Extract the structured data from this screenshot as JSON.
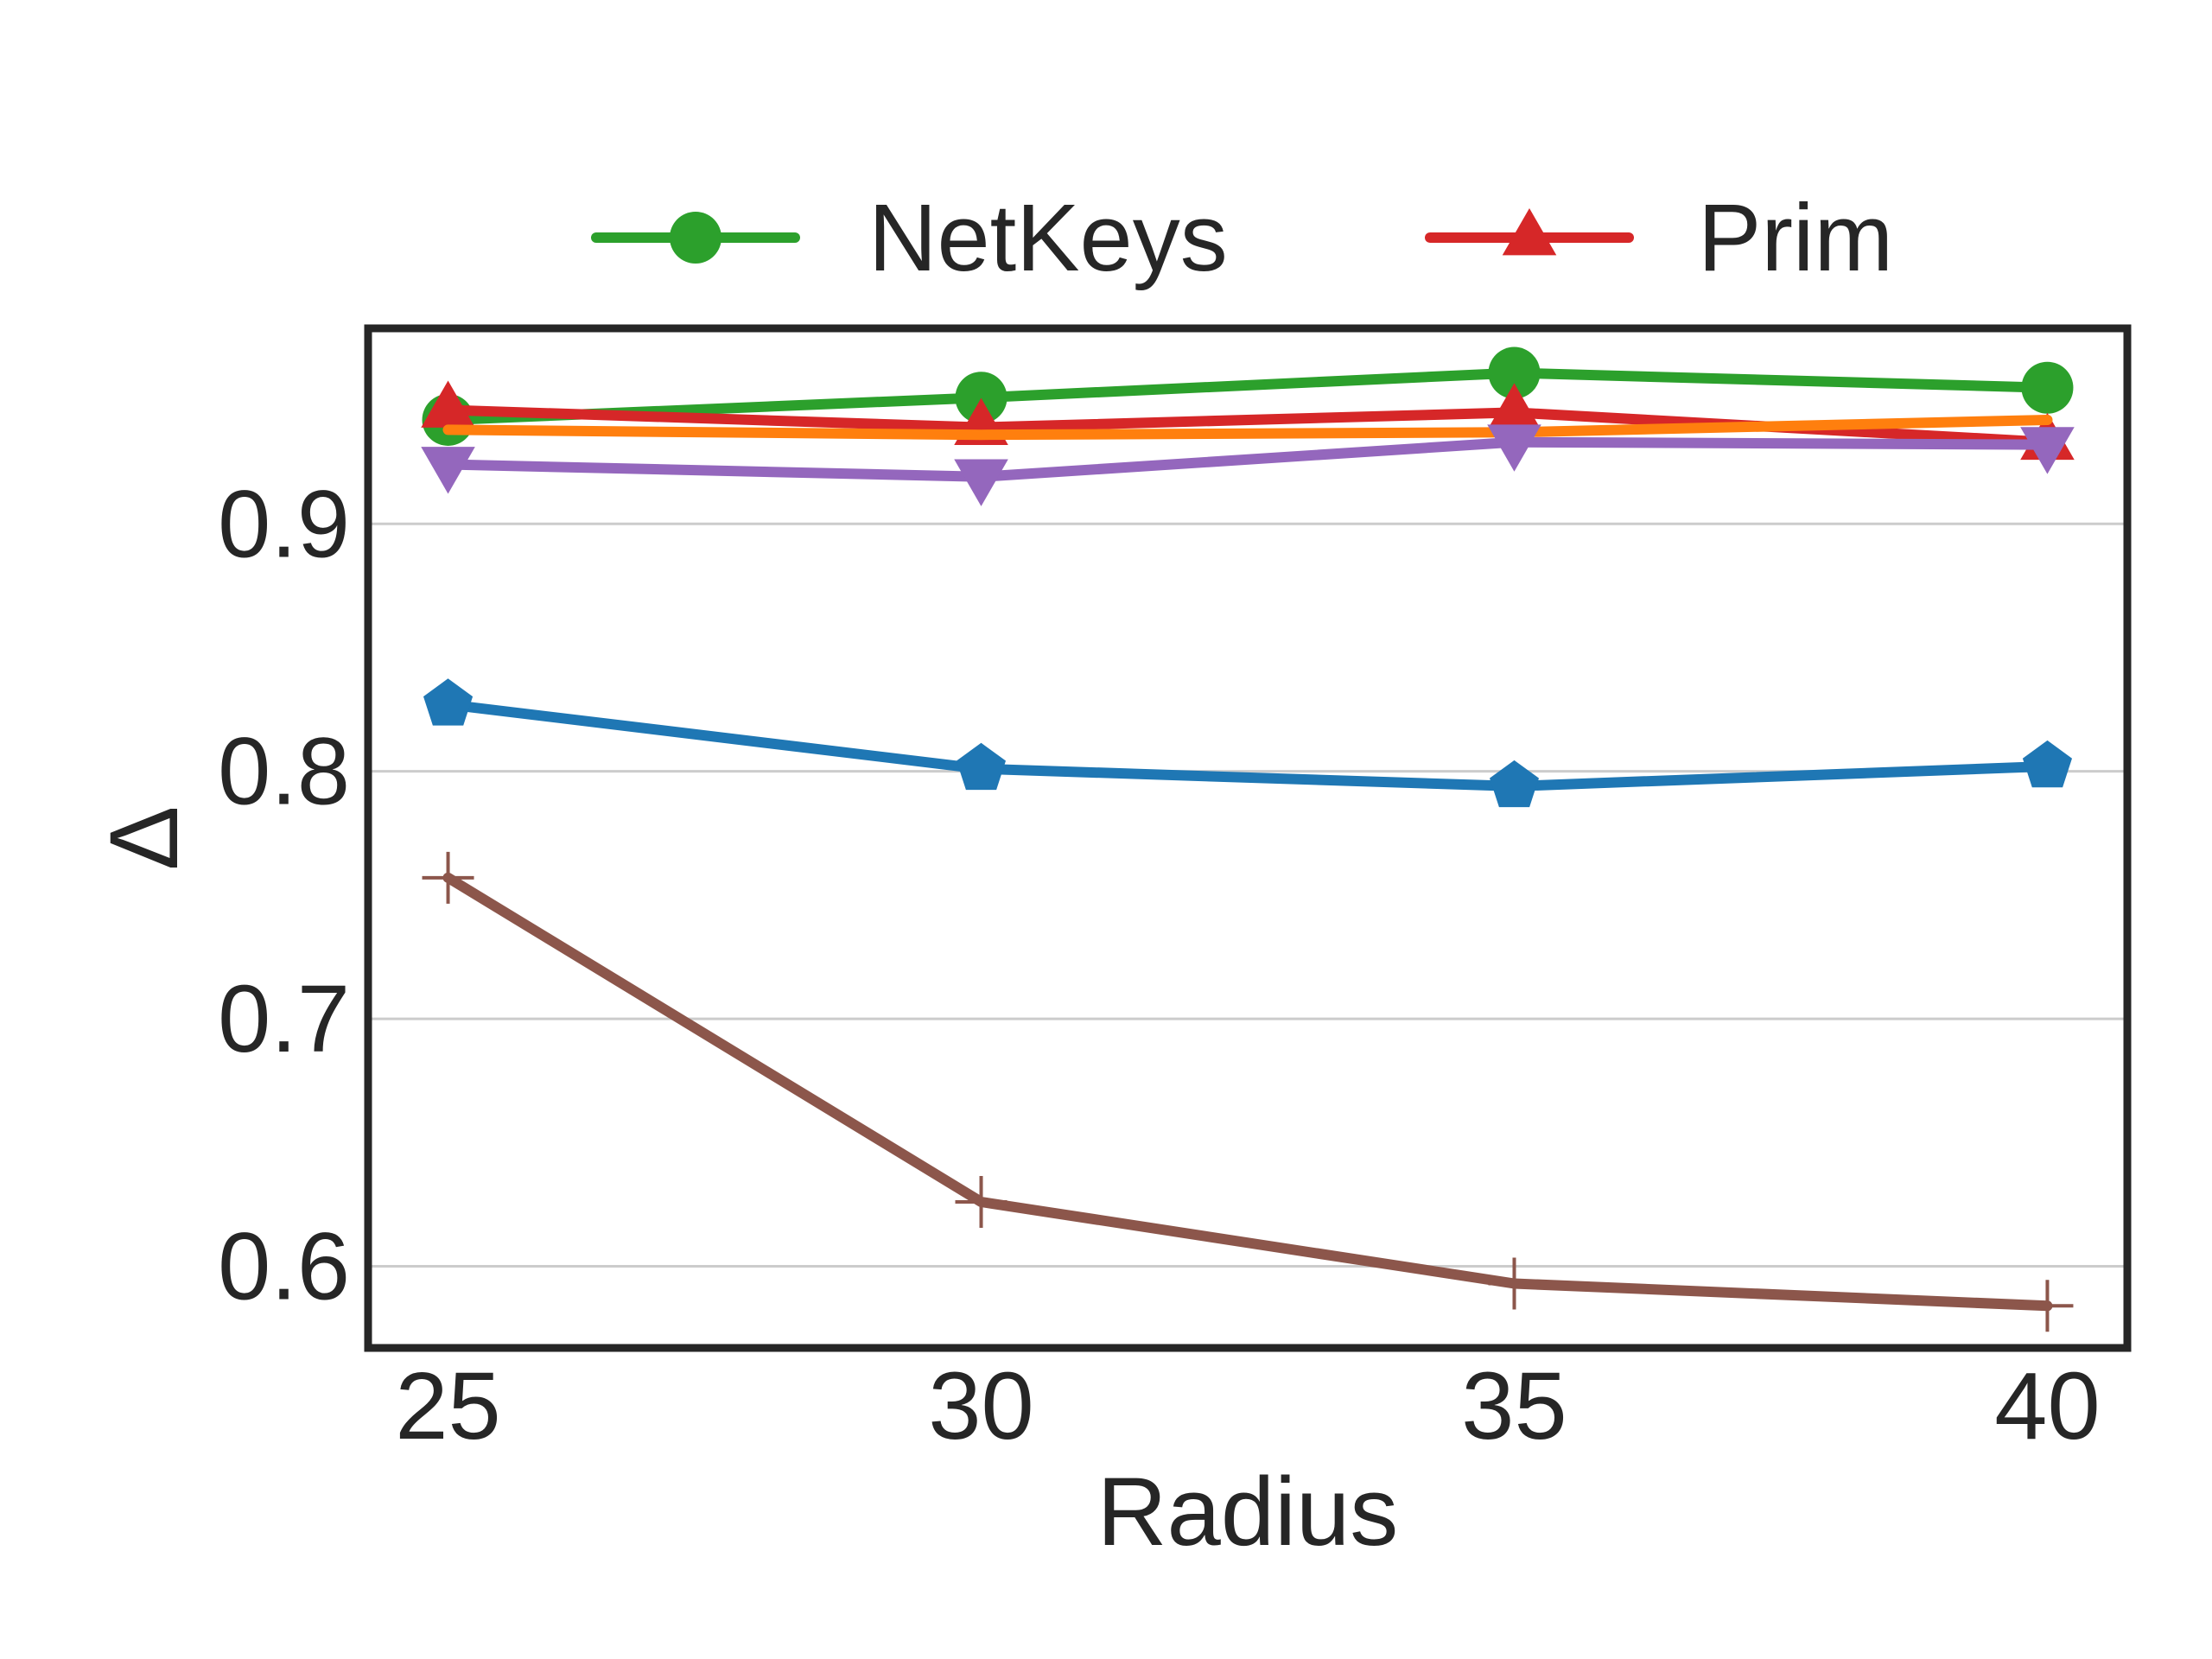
{
  "chart_data": {
    "type": "line",
    "title": "",
    "xlabel": "Radius",
    "ylabel": "Δ",
    "x": [
      25,
      30,
      35,
      40
    ],
    "x_ticks": [
      "25",
      "30",
      "35",
      "40"
    ],
    "y_ticks": [
      "0.6",
      "0.7",
      "0.8",
      "0.9"
    ],
    "y_tick_values": [
      0.6,
      0.7,
      0.8,
      0.9
    ],
    "xlim": [
      24.25,
      40.75
    ],
    "ylim": [
      0.567,
      0.979
    ],
    "grid": "horizontal",
    "legend_placement": "top (above plot)",
    "series": [
      {
        "name": "NetKeys",
        "color": "#2ca02c",
        "marker": "circle",
        "values": [
          0.942,
          0.951,
          0.961,
          0.955
        ],
        "in_legend": true
      },
      {
        "name": "Prim",
        "color": "#d62728",
        "marker": "triangle-up",
        "values": [
          0.946,
          0.939,
          0.945,
          0.933
        ],
        "in_legend": true
      },
      {
        "color": "#ff7f0e",
        "marker": "none",
        "values": [
          0.938,
          0.936,
          0.937,
          0.942
        ],
        "in_legend": false
      },
      {
        "color": "#9467bd",
        "marker": "triangle-down",
        "values": [
          0.924,
          0.919,
          0.933,
          0.932
        ],
        "in_legend": false
      },
      {
        "color": "#1f77b4",
        "marker": "pentagon",
        "values": [
          0.827,
          0.801,
          0.794,
          0.802
        ],
        "in_legend": false
      },
      {
        "color": "#8c564b",
        "marker": "plus",
        "values": [
          0.757,
          0.626,
          0.593,
          0.584
        ],
        "in_legend": false
      }
    ]
  }
}
